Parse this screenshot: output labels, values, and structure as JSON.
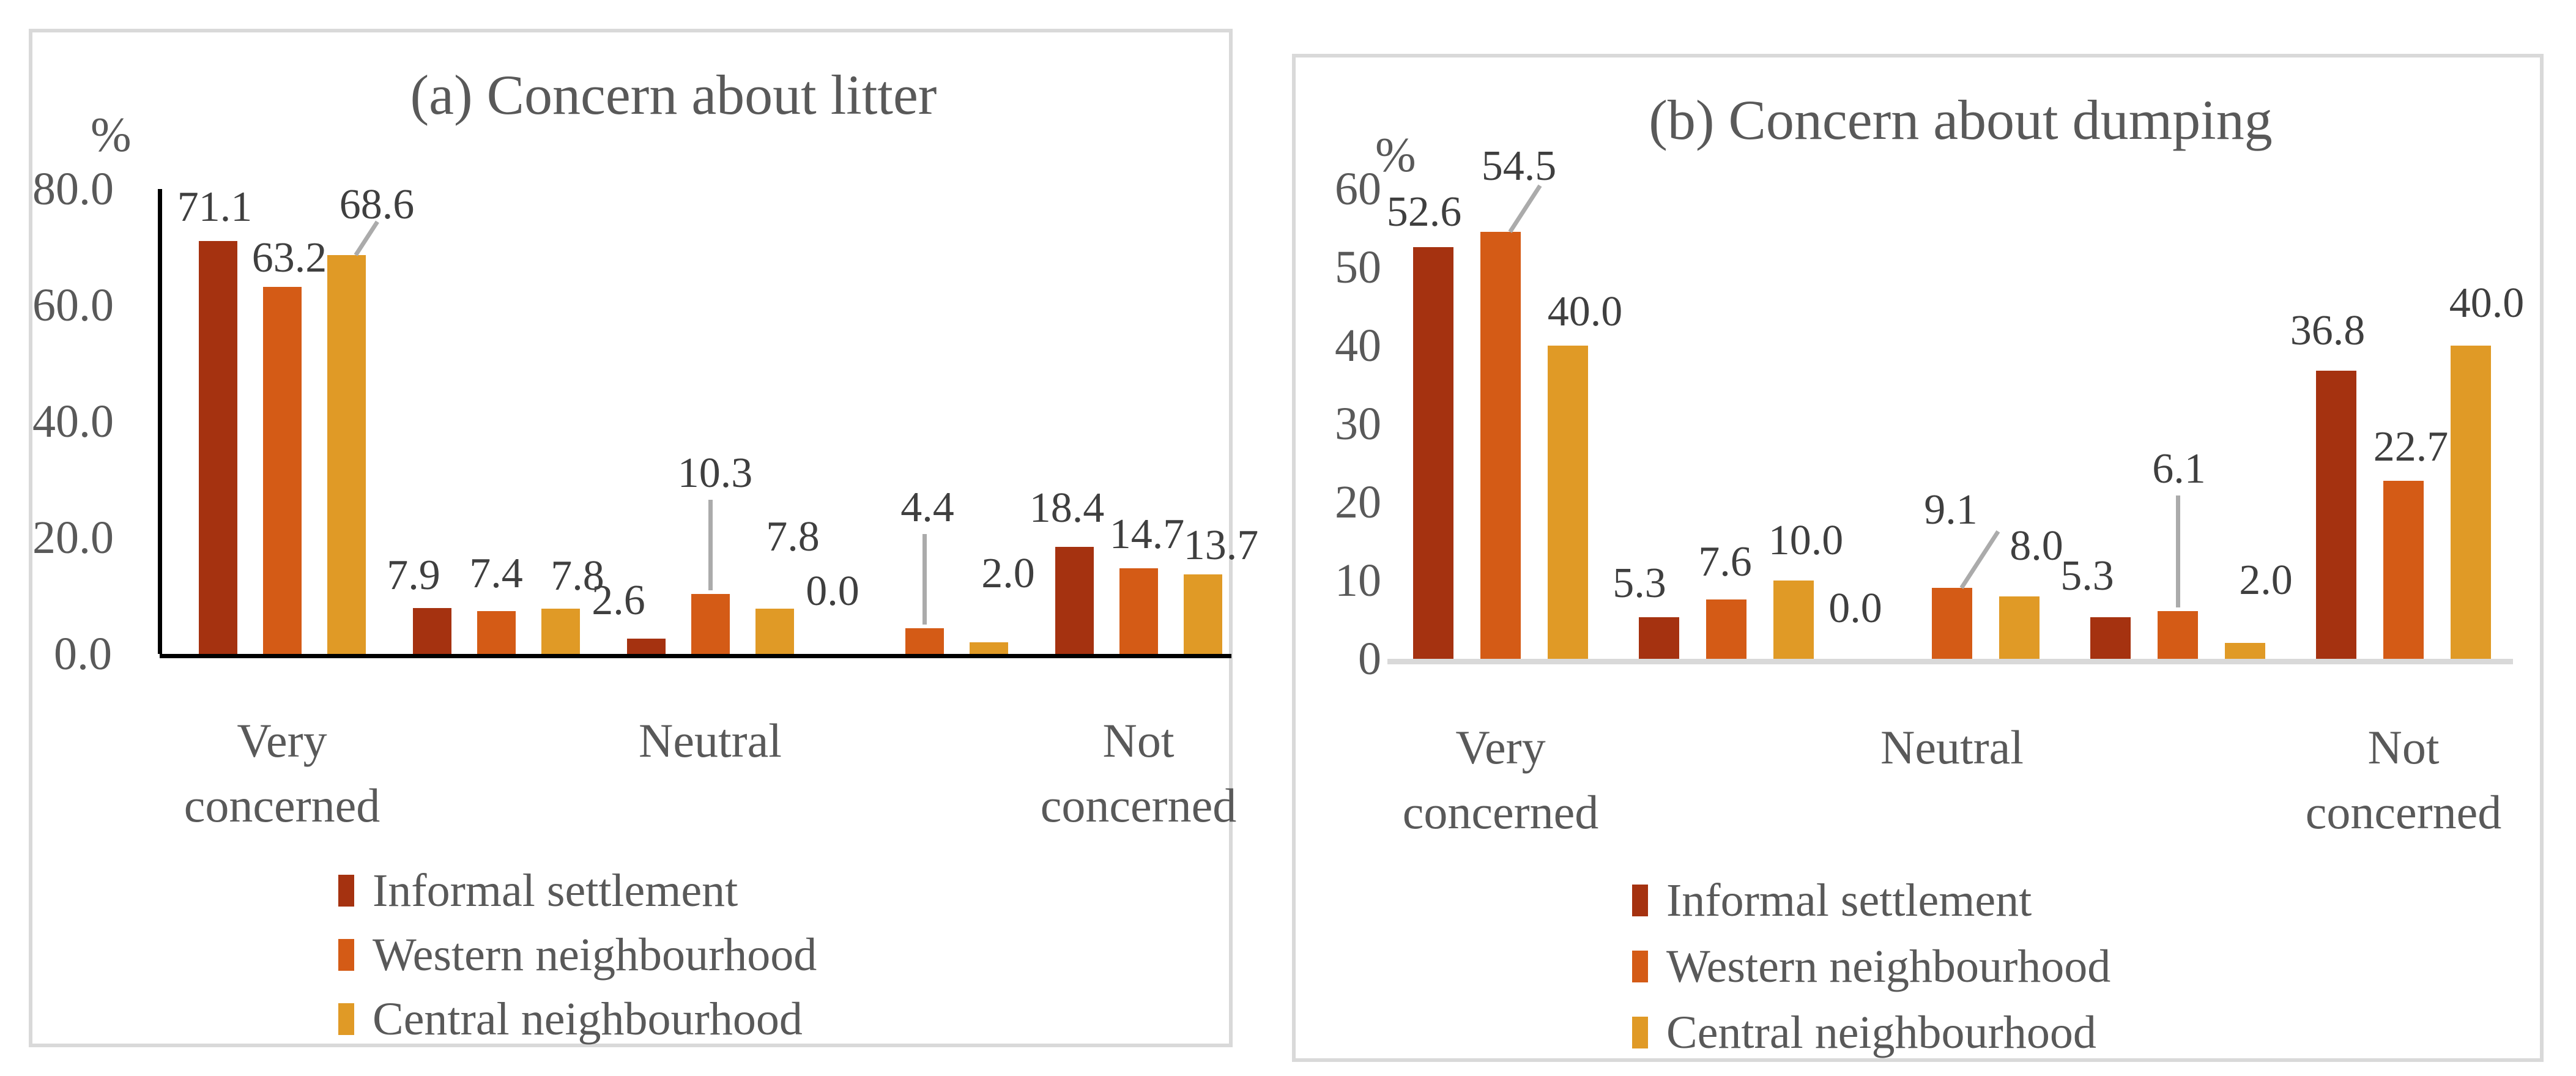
{
  "colors": {
    "series": [
      "#A53210",
      "#D45B16",
      "#E09A26"
    ],
    "data_label": "#3F3F3F",
    "axis_text": "#595959",
    "leader_line": "#ABABAB",
    "panel_border": "#D9D9D9",
    "baseline_litter": "#000000",
    "baseline_dumping": "#D9D9D9"
  },
  "legend": {
    "items": [
      "Informal settlement",
      "Western neighbourhood",
      "Central neighbourhood"
    ]
  },
  "chart_data": [
    {
      "type": "bar",
      "title": "(a) Concern about litter",
      "ylabel": "%",
      "xlabel": "",
      "n_groups": 5,
      "categories": [
        "Very concerned",
        "Neutral",
        "Not concerned"
      ],
      "category_group_positions": [
        0,
        2,
        4
      ],
      "series": [
        {
          "name": "Informal settlement",
          "values": [
            71.1,
            7.9,
            2.6,
            0.0,
            18.4
          ]
        },
        {
          "name": "Western neighbourhood",
          "values": [
            63.2,
            7.4,
            10.3,
            4.4,
            14.7
          ]
        },
        {
          "name": "Central neighbourhood",
          "values": [
            68.6,
            7.8,
            7.8,
            2.0,
            13.7
          ]
        }
      ],
      "ylim": [
        0,
        80
      ],
      "ytick_values": [
        80,
        60,
        40,
        20,
        0
      ],
      "ytick_labels": [
        "80.0",
        "60.0",
        "40.0",
        "20.0",
        "0.0"
      ],
      "grid": false,
      "legend_position": "bottom",
      "layout_hints": {
        "label_offsets": [
          [
            [
              -5,
              -8
            ],
            [
              12,
              0
            ],
            [
              50,
              -35,
              "s"
            ]
          ],
          [
            [
              -30,
              -6
            ],
            [
              0,
              -14
            ],
            [
              28,
              -6
            ]
          ],
          [
            [
              -45,
              -15
            ],
            [
              8,
              -150,
              "v"
            ],
            [
              30,
              -70
            ]
          ],
          [
            [
              -45,
              -55
            ],
            [
              5,
              -150,
              "v"
            ],
            [
              32,
              -65
            ]
          ],
          [
            [
              -12,
              -16
            ],
            [
              14,
              -8
            ],
            [
              30,
              0
            ]
          ]
        ]
      }
    },
    {
      "type": "bar",
      "title": "(b) Concern about dumping",
      "ylabel": "%",
      "xlabel": "",
      "n_groups": 5,
      "categories": [
        "Very concerned",
        "Neutral",
        "Not concerned"
      ],
      "category_group_positions": [
        0,
        2,
        4
      ],
      "series": [
        {
          "name": "Informal settlement",
          "values": [
            52.6,
            5.3,
            0.0,
            5.3,
            36.8
          ]
        },
        {
          "name": "Western neighbourhood",
          "values": [
            54.5,
            7.6,
            9.1,
            6.1,
            22.7
          ]
        },
        {
          "name": "Central neighbourhood",
          "values": [
            40.0,
            10.0,
            8.0,
            2.0,
            40.0
          ]
        }
      ],
      "ylim": [
        0,
        60
      ],
      "ytick_values": [
        60,
        50,
        40,
        30,
        20,
        10,
        0
      ],
      "ytick_labels": [
        "60",
        "50",
        "40",
        "30",
        "20",
        "10",
        "0"
      ],
      "grid": false,
      "legend_position": "bottom",
      "layout_hints": {
        "label_offsets": [
          [
            [
              -15,
              -10
            ],
            [
              30,
              -60,
              "s"
            ],
            [
              28,
              -8
            ]
          ],
          [
            [
              -32,
              -8
            ],
            [
              -2,
              -14
            ],
            [
              20,
              -18
            ]
          ],
          [
            [
              -48,
              -35
            ],
            [
              -2,
              -80,
              "s"
            ],
            [
              28,
              -35
            ]
          ],
          [
            [
              -38,
              -20
            ],
            [
              2,
              -185,
              "v"
            ],
            [
              34,
              -55
            ]
          ],
          [
            [
              -14,
              -18
            ],
            [
              12,
              -8
            ],
            [
              26,
              -22
            ]
          ]
        ]
      }
    }
  ]
}
